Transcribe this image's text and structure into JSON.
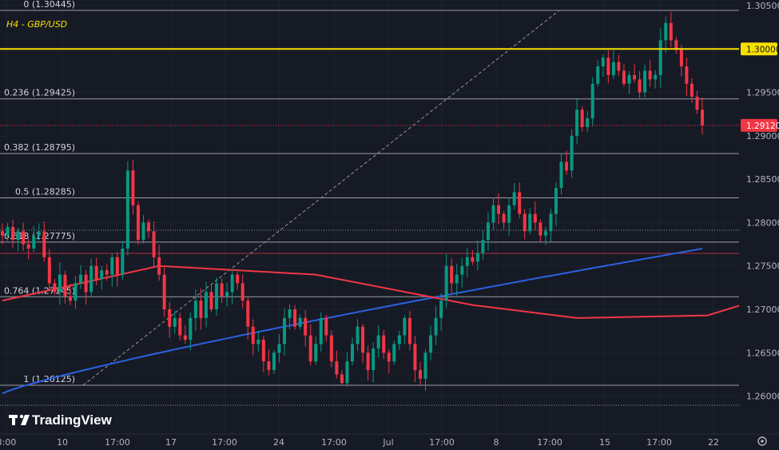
{
  "chart_data": {
    "type": "candlestick",
    "symbol_title": "H4 - GBP/USD",
    "ylim": [
      1.2592,
      1.305
    ],
    "y_ticks": [
      1.26,
      1.265,
      1.27,
      1.275,
      1.28,
      1.285,
      1.29,
      1.295,
      1.305
    ],
    "y_tick_labels": [
      "1.26000",
      "1.26500",
      "1.27000",
      "1.27500",
      "1.28000",
      "1.28500",
      "1.29000",
      "1.29500",
      "1.30500"
    ],
    "x_ticks": [
      "3:00",
      "10",
      "17:00",
      "17",
      "17:00",
      "24",
      "17:00",
      "Jul",
      "17:00",
      "8",
      "17:00",
      "15",
      "17:00",
      "22"
    ],
    "horizontal_level": {
      "value": 1.3,
      "label": "1.30000",
      "color": "#f5e000"
    },
    "last_price": {
      "value": 1.2912,
      "label": "1.29120",
      "color": "#f23645"
    },
    "fibonacci": [
      {
        "ratio": "0",
        "price": 1.30445,
        "label": "0 (1.30445)"
      },
      {
        "ratio": "0.236",
        "price": 1.29425,
        "label": "0.236 (1.29425)"
      },
      {
        "ratio": "0.382",
        "price": 1.28795,
        "label": "0.382 (1.28795)"
      },
      {
        "ratio": "0.5",
        "price": 1.28285,
        "label": "0.5 (1.28285)"
      },
      {
        "ratio": "0.618",
        "price": 1.27775,
        "label": "0.618 (1.27775)"
      },
      {
        "ratio": "0.764",
        "price": 1.27145,
        "label": "0.764 (1.27145)"
      },
      {
        "ratio": "1",
        "price": 1.26125,
        "label": "1 (1.26125)"
      }
    ],
    "closes": [
      1.2785,
      1.2795,
      1.278,
      1.279,
      1.2775,
      1.277,
      1.2785,
      1.279,
      1.276,
      1.273,
      1.272,
      1.274,
      1.2715,
      1.271,
      1.273,
      1.274,
      1.272,
      1.275,
      1.2735,
      1.2745,
      1.274,
      1.276,
      1.274,
      1.277,
      1.286,
      1.282,
      1.278,
      1.28,
      1.279,
      1.276,
      1.274,
      1.27,
      1.268,
      1.269,
      1.267,
      1.2665,
      1.269,
      1.271,
      1.269,
      1.272,
      1.27,
      1.273,
      1.2715,
      1.272,
      1.274,
      1.273,
      1.271,
      1.268,
      1.266,
      1.2665,
      1.264,
      1.263,
      1.265,
      1.266,
      1.269,
      1.27,
      1.268,
      1.269,
      1.267,
      1.264,
      1.266,
      1.269,
      1.267,
      1.264,
      1.2625,
      1.2615,
      1.264,
      1.266,
      1.268,
      1.265,
      1.263,
      1.2655,
      1.267,
      1.265,
      1.264,
      1.266,
      1.267,
      1.269,
      1.266,
      1.263,
      1.262,
      1.265,
      1.267,
      1.269,
      1.271,
      1.275,
      1.273,
      1.274,
      1.275,
      1.276,
      1.2755,
      1.2765,
      1.278,
      1.28,
      1.282,
      1.281,
      1.28,
      1.282,
      1.2835,
      1.281,
      1.279,
      1.281,
      1.28,
      1.2785,
      1.279,
      1.281,
      1.284,
      1.287,
      1.286,
      1.29,
      1.293,
      1.291,
      1.292,
      1.296,
      1.298,
      1.299,
      1.297,
      1.2985,
      1.2975,
      1.296,
      1.297,
      1.2965,
      1.295,
      1.2975,
      1.2965,
      1.297,
      1.301,
      1.303,
      1.301,
      1.3,
      1.298,
      1.296,
      1.2945,
      1.293,
      1.2912
    ],
    "sma_blue": {
      "start": 1.2603,
      "end": 1.277,
      "color": "#2a62e3"
    },
    "sma_red": {
      "points": [
        [
          0,
          1.271
        ],
        [
          30,
          1.275
        ],
        [
          60,
          1.274
        ],
        [
          90,
          1.2705
        ],
        [
          110,
          1.269
        ],
        [
          135,
          1.2693
        ],
        [
          155,
          1.273
        ],
        [
          170,
          1.279
        ],
        [
          184,
          1.282
        ]
      ],
      "color": "#f23645"
    }
  },
  "watermark": {
    "text": "TradingView"
  },
  "settings_icon": "gear-icon"
}
